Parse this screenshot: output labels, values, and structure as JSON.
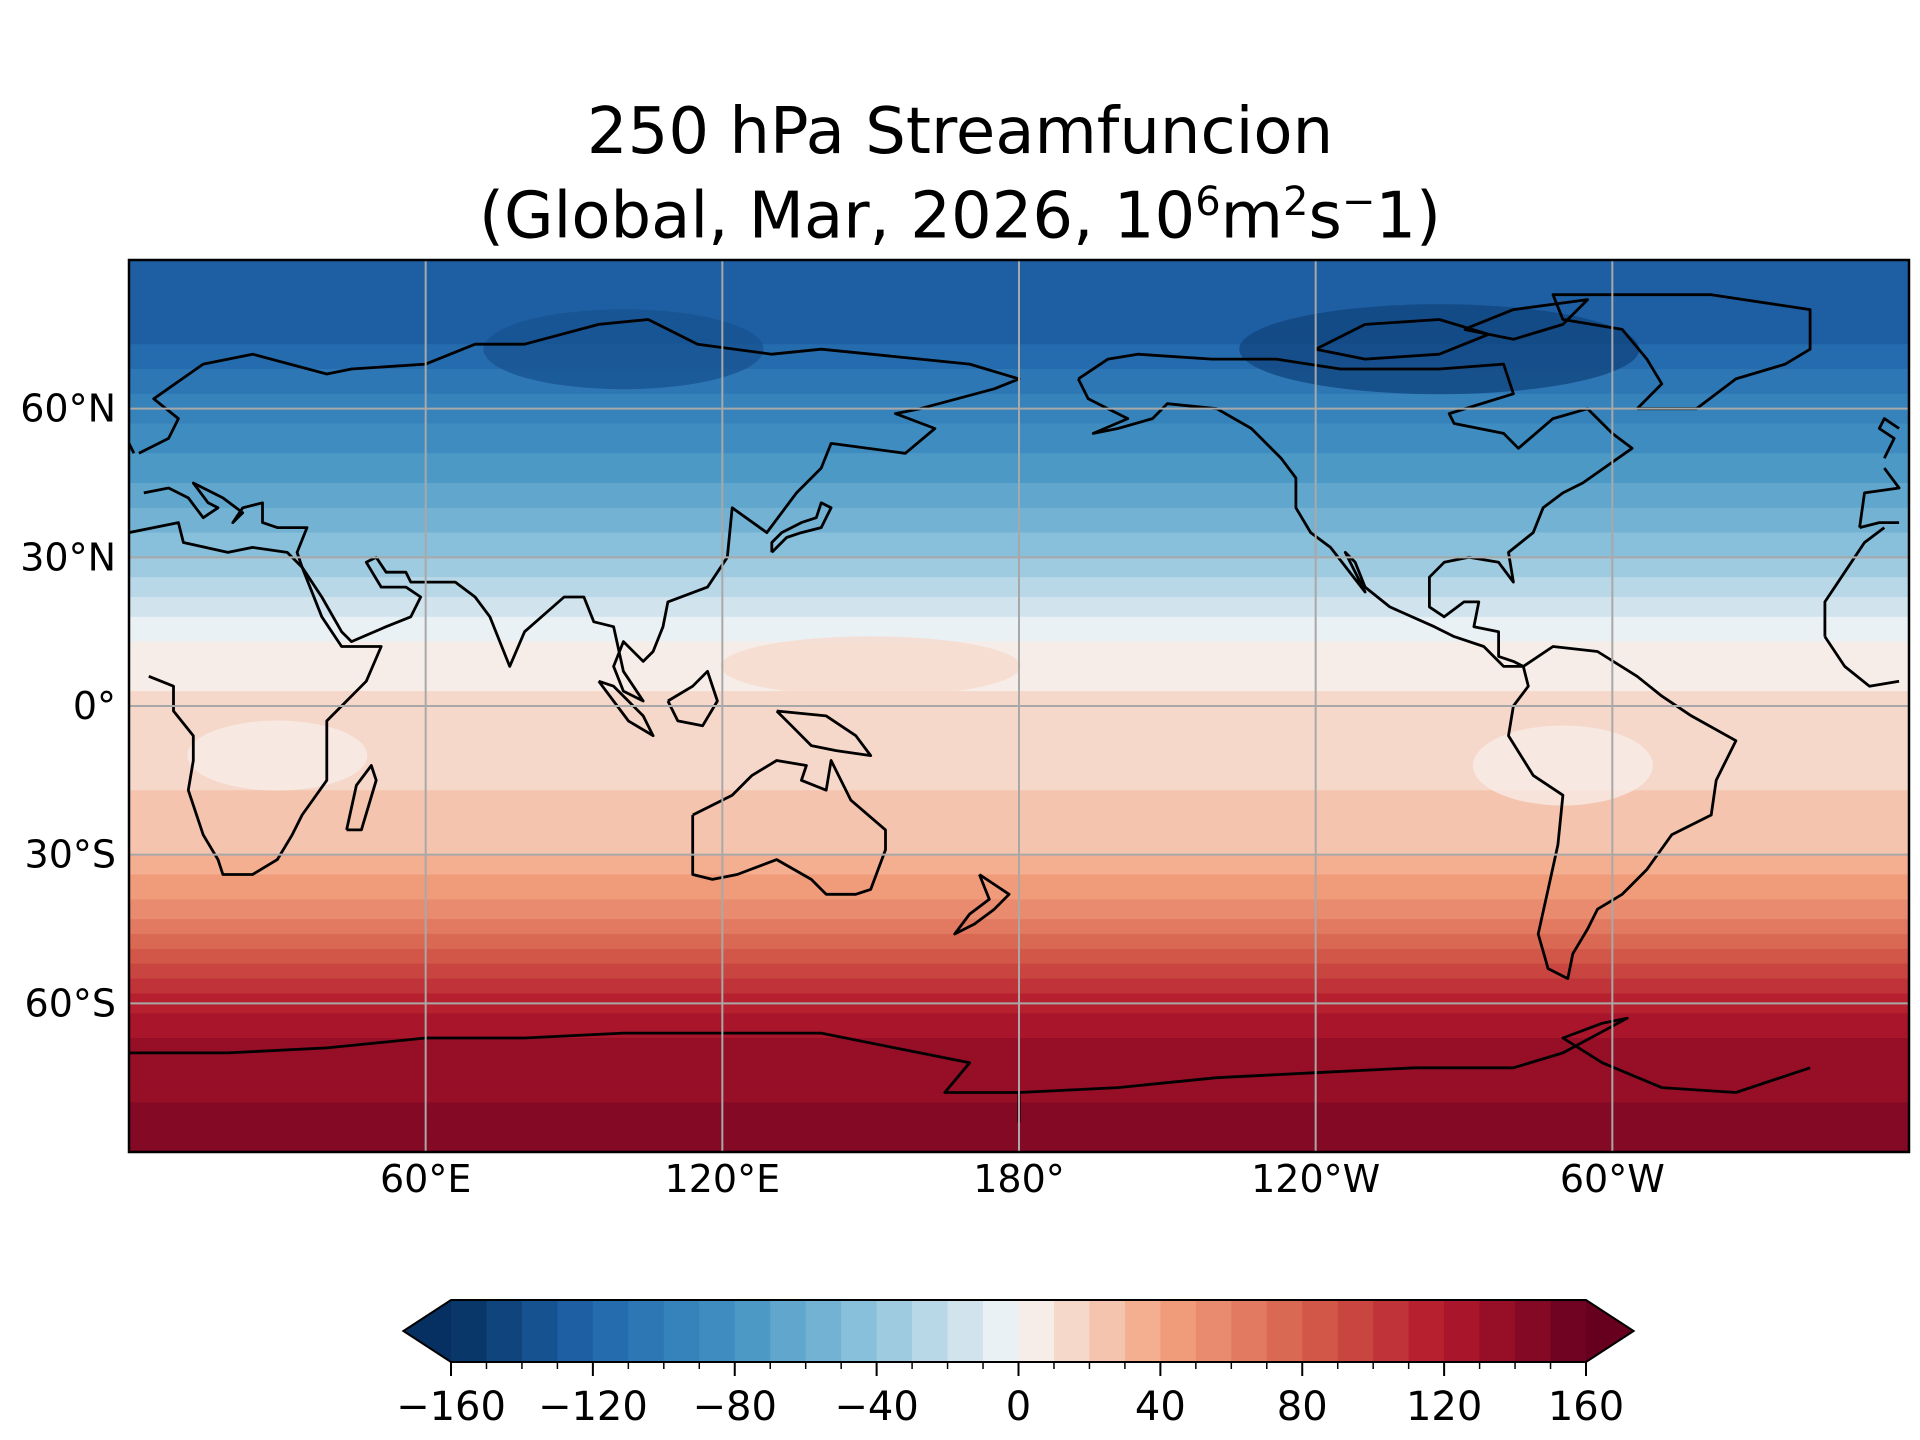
{
  "title": {
    "line1": "250 hPa Streamfuncion",
    "line2_prefix": "(Global, Mar, 2026, 10",
    "line2_exp1": "6",
    "line2_mid1": "m",
    "line2_exp2": "2",
    "line2_mid2": "s",
    "line2_exp3": "−",
    "line2_suffix": "1)"
  },
  "map": {
    "projection": "PlateCarree",
    "central_longitude": 180,
    "grid": true,
    "lon_ticks": [
      {
        "value": 60,
        "label": "60°E"
      },
      {
        "value": 120,
        "label": "120°E"
      },
      {
        "value": 180,
        "label": "180°"
      },
      {
        "value": -120,
        "label": "120°W"
      },
      {
        "value": -60,
        "label": "60°W"
      }
    ],
    "lat_ticks": [
      {
        "value": 60,
        "label": "60°N"
      },
      {
        "value": 30,
        "label": "30°N"
      },
      {
        "value": 0,
        "label": "0°"
      },
      {
        "value": -30,
        "label": "30°S"
      },
      {
        "value": -60,
        "label": "60°S"
      }
    ],
    "extent": {
      "lon_min": 0,
      "lon_max": 360,
      "lat_min": -90,
      "lat_max": 90
    },
    "coastlines": "black"
  },
  "chart_data": {
    "type": "heatmap",
    "field": "250 hPa streamfunction",
    "units_label": "10^6 m^2 s^-1",
    "zonal_profile": [
      {
        "lat": 90,
        "value": -120
      },
      {
        "lat": 75,
        "value": -125
      },
      {
        "lat": 60,
        "value": -95
      },
      {
        "lat": 45,
        "value": -70
      },
      {
        "lat": 30,
        "value": -40
      },
      {
        "lat": 20,
        "value": -15
      },
      {
        "lat": 10,
        "value": 5
      },
      {
        "lat": 0,
        "value": 12
      },
      {
        "lat": -15,
        "value": 18
      },
      {
        "lat": -30,
        "value": 30
      },
      {
        "lat": -45,
        "value": 65
      },
      {
        "lat": -60,
        "value": 115
      },
      {
        "lat": -70,
        "value": 135
      },
      {
        "lat": -90,
        "value": 145
      }
    ],
    "colorbar": {
      "colormap": "RdBu_r",
      "min": -160,
      "max": 160,
      "step": 10,
      "extend": "both",
      "tick_values": [
        -160,
        -120,
        -80,
        -40,
        0,
        40,
        80,
        120,
        160
      ],
      "tick_labels": [
        "−160",
        "−120",
        "−80",
        "−40",
        "0",
        "40",
        "80",
        "120",
        "160"
      ]
    }
  }
}
